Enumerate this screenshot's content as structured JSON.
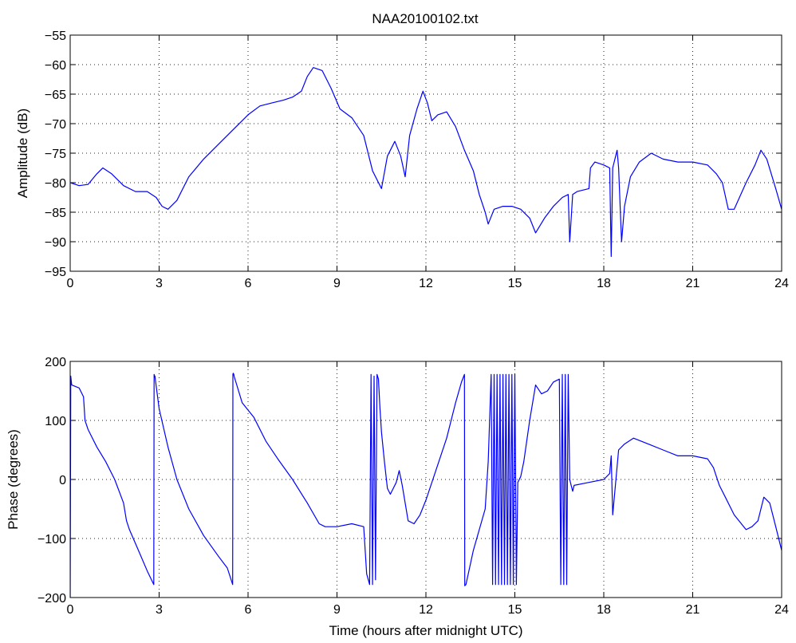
{
  "figure": {
    "title": "NAA20100102.txt",
    "colors": {
      "series": "#0000ff",
      "axes": "#000000",
      "background": "#ffffff"
    }
  },
  "chart_data": [
    {
      "type": "line",
      "title": "NAA20100102.txt",
      "xlabel": "",
      "ylabel": "Amplitude (dB)",
      "xlim": [
        0,
        24
      ],
      "ylim": [
        -95,
        -55
      ],
      "xticks": [
        "0",
        "3",
        "6",
        "9",
        "12",
        "15",
        "18",
        "21",
        "24"
      ],
      "yticks": [
        "-55",
        "-60",
        "-65",
        "-70",
        "-75",
        "-80",
        "-85",
        "-90",
        "-95"
      ],
      "grid": true,
      "x": [
        0,
        0.3,
        0.6,
        0.9,
        1.1,
        1.4,
        1.8,
        2.2,
        2.6,
        2.9,
        3.1,
        3.3,
        3.6,
        4.0,
        4.5,
        5.0,
        5.5,
        6.0,
        6.4,
        6.8,
        7.2,
        7.5,
        7.8,
        8.0,
        8.2,
        8.5,
        8.8,
        9.1,
        9.5,
        9.9,
        10.2,
        10.5,
        10.7,
        10.95,
        11.15,
        11.3,
        11.45,
        11.7,
        11.9,
        12.05,
        12.2,
        12.4,
        12.7,
        13.0,
        13.3,
        13.6,
        13.8,
        14.0,
        14.1,
        14.3,
        14.6,
        14.9,
        15.2,
        15.5,
        15.7,
        16.0,
        16.3,
        16.6,
        16.8,
        16.85,
        16.95,
        17.1,
        17.5,
        17.55,
        17.7,
        18.0,
        18.2,
        18.25,
        18.3,
        18.45,
        18.5,
        18.6,
        18.7,
        18.9,
        19.2,
        19.6,
        20.0,
        20.5,
        21.0,
        21.5,
        21.8,
        22.0,
        22.2,
        22.4,
        22.8,
        23.1,
        23.3,
        23.5,
        23.8,
        24.0
      ],
      "y": [
        -80,
        -80.5,
        -80.3,
        -78.5,
        -77.5,
        -78.5,
        -80.5,
        -81.5,
        -81.5,
        -82.5,
        -84,
        -84.5,
        -83,
        -79,
        -76,
        -73.5,
        -71,
        -68.5,
        -67,
        -66.5,
        -66,
        -65.5,
        -64.5,
        -62,
        -60.5,
        -61,
        -64,
        -67.5,
        -69,
        -72,
        -78,
        -81,
        -75.5,
        -73,
        -75.5,
        -79,
        -72,
        -67.5,
        -64.5,
        -66.5,
        -69.5,
        -68.5,
        -68,
        -70.5,
        -74.5,
        -78,
        -82,
        -85,
        -87,
        -84.5,
        -84,
        -84,
        -84.5,
        -86,
        -88.5,
        -86,
        -84,
        -82.5,
        -82,
        -90,
        -82,
        -81.5,
        -81,
        -77.5,
        -76.5,
        -77,
        -77.5,
        -92.5,
        -77.5,
        -74.5,
        -77.5,
        -90,
        -84,
        -79,
        -76.5,
        -75,
        -76,
        -76.5,
        -76.5,
        -77,
        -78.5,
        -80,
        -84.5,
        -84.5,
        -80,
        -77,
        -74.5,
        -76,
        -81,
        -84.5
      ]
    },
    {
      "type": "line",
      "title": "",
      "xlabel": "Time (hours after midnight UTC)",
      "ylabel": "Phase (degrees)",
      "xlim": [
        0,
        24
      ],
      "ylim": [
        -200,
        200
      ],
      "xticks": [
        "0",
        "3",
        "6",
        "9",
        "12",
        "15",
        "18",
        "21",
        "24"
      ],
      "yticks": [
        "200",
        "100",
        "0",
        "-100",
        "-200"
      ],
      "grid": true,
      "x": [
        0,
        0.02,
        0.05,
        0.3,
        0.45,
        0.5,
        0.6,
        0.9,
        1.2,
        1.5,
        1.8,
        1.9,
        2.0,
        2.3,
        2.6,
        2.82,
        2.83,
        2.84,
        2.86,
        2.87,
        3.0,
        3.3,
        3.6,
        4.0,
        4.5,
        5.0,
        5.3,
        5.48,
        5.49,
        5.5,
        5.52,
        5.53,
        5.8,
        6.2,
        6.6,
        7.0,
        7.5,
        8.0,
        8.4,
        8.6,
        9.0,
        9.5,
        9.9,
        10.0,
        10.1,
        10.15,
        10.2,
        10.25,
        10.3,
        10.35,
        10.4,
        10.45,
        10.5,
        10.6,
        10.7,
        10.8,
        10.9,
        11.0,
        11.1,
        11.2,
        11.4,
        11.6,
        11.8,
        12.0,
        12.3,
        12.7,
        13.0,
        13.2,
        13.3,
        13.31,
        13.35,
        13.6,
        14.0,
        14.1,
        14.2,
        14.25,
        14.3,
        14.35,
        14.4,
        14.45,
        14.5,
        14.55,
        14.6,
        14.65,
        14.7,
        14.75,
        14.8,
        14.85,
        14.9,
        14.95,
        15.0,
        15.05,
        15.1,
        15.2,
        15.3,
        15.5,
        15.7,
        15.9,
        16.1,
        16.3,
        16.5,
        16.55,
        16.6,
        16.65,
        16.7,
        16.75,
        16.8,
        16.85,
        16.9,
        16.95,
        17.0,
        17.5,
        18.0,
        18.2,
        18.25,
        18.3,
        18.5,
        18.7,
        19.0,
        19.5,
        20.0,
        20.5,
        21.0,
        21.5,
        21.7,
        21.9,
        22.1,
        22.4,
        22.8,
        23.0,
        23.2,
        23.4,
        23.6,
        23.8,
        24.0
      ],
      "y": [
        -200,
        175,
        160,
        155,
        140,
        100,
        85,
        55,
        30,
        0,
        -40,
        -70,
        -85,
        -120,
        -155,
        -178,
        178,
        176,
        175,
        170,
        120,
        55,
        0,
        -50,
        -95,
        -130,
        -150,
        -178,
        178,
        180,
        178,
        175,
        130,
        105,
        65,
        35,
        0,
        -40,
        -75,
        -80,
        -80,
        -75,
        -80,
        -160,
        -178,
        178,
        -178,
        175,
        -170,
        178,
        170,
        120,
        80,
        30,
        -15,
        -25,
        -15,
        -5,
        15,
        -10,
        -70,
        -75,
        -60,
        -35,
        10,
        70,
        130,
        165,
        178,
        -180,
        -178,
        -120,
        -50,
        30,
        178,
        -178,
        178,
        -178,
        178,
        -178,
        178,
        -178,
        178,
        -178,
        178,
        -178,
        178,
        -178,
        178,
        -178,
        178,
        -178,
        -5,
        5,
        30,
        100,
        160,
        145,
        150,
        165,
        170,
        -178,
        178,
        -178,
        178,
        -178,
        178,
        0,
        -10,
        -20,
        -10,
        -5,
        0,
        10,
        40,
        -60,
        50,
        60,
        70,
        60,
        50,
        40,
        40,
        35,
        20,
        -10,
        -30,
        -60,
        -85,
        -80,
        -70,
        -30,
        -40,
        -80,
        -120
      ]
    }
  ]
}
